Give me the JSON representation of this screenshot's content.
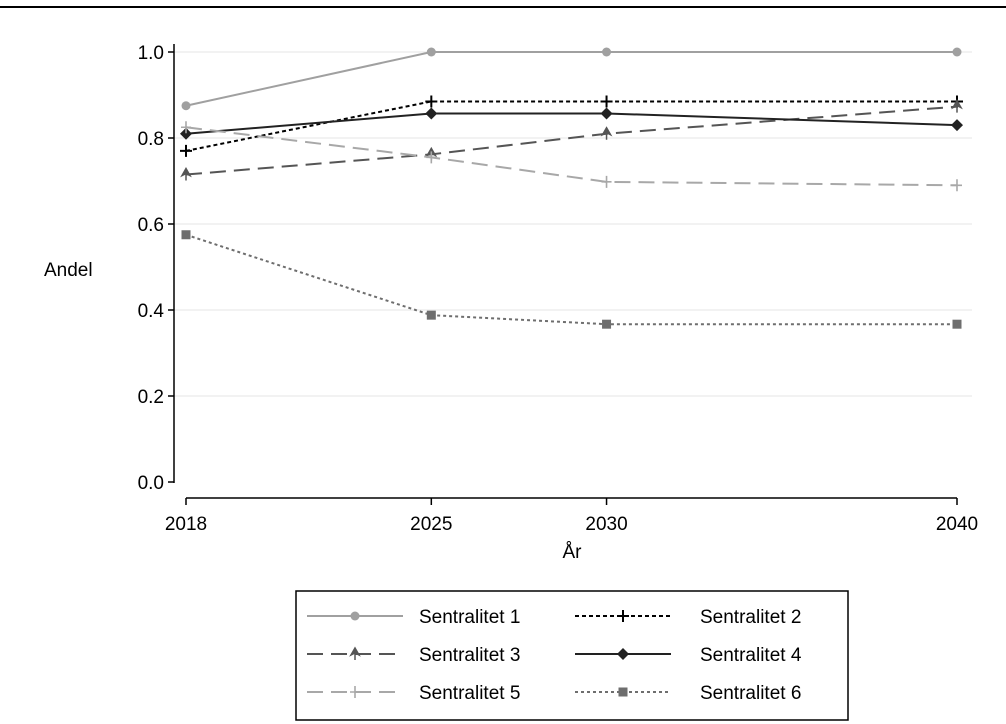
{
  "chart_data": {
    "type": "line",
    "title": "",
    "xlabel": "År",
    "ylabel": "Andel",
    "x": [
      2018,
      2025,
      2030,
      2040
    ],
    "xticks": [
      "2018",
      "2025",
      "2030",
      "2040"
    ],
    "yticks": [
      "0.0",
      "0.2",
      "0.4",
      "0.6",
      "0.8",
      "1.0"
    ],
    "ylim": [
      0,
      1
    ],
    "xlim": [
      2018,
      2040
    ],
    "grid": "horizontal",
    "legend_position": "bottom",
    "series": [
      {
        "name": "Sentralitet 1",
        "values": [
          0.875,
          1.0,
          1.0,
          1.0
        ],
        "color": "#a0a0a0",
        "dash": "solid",
        "marker": "circle"
      },
      {
        "name": "Sentralitet 2",
        "values": [
          0.77,
          0.885,
          0.885,
          0.885
        ],
        "color": "#000000",
        "dash": "short",
        "marker": "plus"
      },
      {
        "name": "Sentralitet 3",
        "values": [
          0.715,
          0.762,
          0.81,
          0.873
        ],
        "color": "#555555",
        "dash": "long",
        "marker": "arrow"
      },
      {
        "name": "Sentralitet 4",
        "values": [
          0.81,
          0.857,
          0.857,
          0.83
        ],
        "color": "#222222",
        "dash": "solid",
        "marker": "diamond"
      },
      {
        "name": "Sentralitet 5",
        "values": [
          0.825,
          0.755,
          0.698,
          0.69
        ],
        "color": "#a8a8a8",
        "dash": "long",
        "marker": "cross"
      },
      {
        "name": "Sentralitet 6",
        "values": [
          0.575,
          0.388,
          0.367,
          0.367
        ],
        "color": "#6e6e6e",
        "dash": "dot",
        "marker": "square"
      }
    ]
  }
}
